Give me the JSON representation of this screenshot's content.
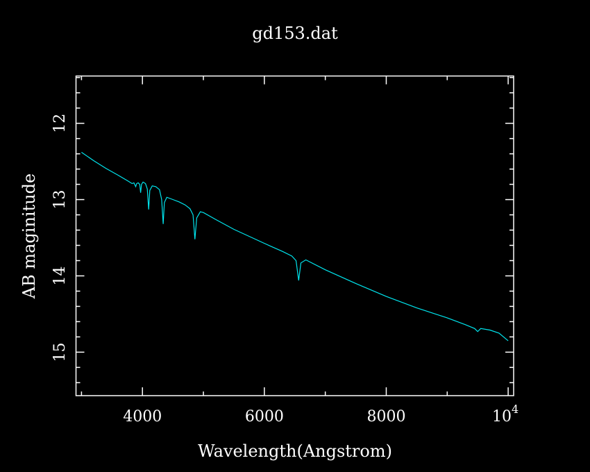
{
  "colors": {
    "background": "#000000",
    "axes": "#ffffff",
    "curve": "#00e5ee"
  },
  "chart_data": {
    "type": "line",
    "title": "gd153.dat",
    "xlabel": "Wavelength(Angstrom)",
    "ylabel": "AB maginitude",
    "xlim": [
      2910,
      10090
    ],
    "ylim": [
      15.57,
      11.38
    ],
    "y_inverted": true,
    "grid": false,
    "legend": null,
    "x_ticks": {
      "major": [
        4000,
        6000,
        8000,
        10000
      ],
      "major_labels": [
        "4000",
        "6000",
        "8000",
        "10^4"
      ],
      "minor": [
        3000,
        5000,
        7000,
        9000
      ]
    },
    "y_ticks": {
      "major": [
        12,
        13,
        14,
        15
      ],
      "major_labels": [
        "12",
        "13",
        "14",
        "15"
      ],
      "minor_step": 0.2
    },
    "series": [
      {
        "name": "gd153.dat",
        "x": [
          3000,
          3200,
          3400,
          3600,
          3750,
          3830,
          3860,
          3889,
          3905,
          3930,
          3955,
          3970,
          3985,
          4010,
          4050,
          4080,
          4102,
          4120,
          4160,
          4220,
          4280,
          4315,
          4340,
          4360,
          4400,
          4500,
          4600,
          4700,
          4780,
          4830,
          4861,
          4890,
          4950,
          5000,
          5200,
          5500,
          5800,
          6100,
          6300,
          6450,
          6520,
          6563,
          6600,
          6680,
          7000,
          7500,
          8000,
          8500,
          9000,
          9300,
          9450,
          9500,
          9550,
          9700,
          9850,
          10000
        ],
        "y": [
          12.38,
          12.49,
          12.59,
          12.68,
          12.75,
          12.79,
          12.78,
          12.83,
          12.79,
          12.78,
          12.8,
          12.91,
          12.8,
          12.77,
          12.79,
          12.86,
          13.13,
          12.88,
          12.82,
          12.83,
          12.87,
          13.0,
          13.32,
          13.04,
          12.97,
          13.0,
          13.03,
          13.07,
          13.12,
          13.2,
          13.52,
          13.24,
          13.16,
          13.17,
          13.26,
          13.39,
          13.5,
          13.61,
          13.68,
          13.74,
          13.8,
          14.06,
          13.83,
          13.79,
          13.92,
          14.1,
          14.27,
          14.42,
          14.55,
          14.64,
          14.69,
          14.73,
          14.69,
          14.71,
          14.75,
          14.85
        ]
      }
    ],
    "annotations": []
  }
}
